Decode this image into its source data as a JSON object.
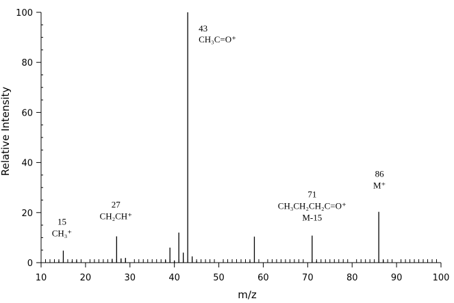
{
  "chart_data": {
    "type": "bar",
    "xlabel": "m/z",
    "ylabel": "Relative Intensity",
    "xlim": [
      10,
      100
    ],
    "ylim": [
      0,
      100
    ],
    "x_ticks": [
      10,
      20,
      30,
      40,
      50,
      60,
      70,
      80,
      90,
      100
    ],
    "y_ticks": [
      0,
      20,
      40,
      60,
      80,
      100
    ],
    "grid": false,
    "peaks": [
      {
        "mz": 14,
        "intensity": 0.8
      },
      {
        "mz": 15,
        "intensity": 4.8
      },
      {
        "mz": 17,
        "intensity": 0.6
      },
      {
        "mz": 18,
        "intensity": 0.9
      },
      {
        "mz": 26,
        "intensity": 1.5
      },
      {
        "mz": 27,
        "intensity": 10.5
      },
      {
        "mz": 28,
        "intensity": 1.7
      },
      {
        "mz": 29,
        "intensity": 1.9
      },
      {
        "mz": 38,
        "intensity": 1.0
      },
      {
        "mz": 39,
        "intensity": 6.0
      },
      {
        "mz": 40,
        "intensity": 0.9
      },
      {
        "mz": 41,
        "intensity": 12.0
      },
      {
        "mz": 42,
        "intensity": 4.0
      },
      {
        "mz": 43,
        "intensity": 100
      },
      {
        "mz": 44,
        "intensity": 2.5
      },
      {
        "mz": 45,
        "intensity": 0.6
      },
      {
        "mz": 57,
        "intensity": 0.8
      },
      {
        "mz": 58,
        "intensity": 10.4
      },
      {
        "mz": 71,
        "intensity": 10.8
      },
      {
        "mz": 72,
        "intensity": 0.6
      },
      {
        "mz": 86,
        "intensity": 20.3
      },
      {
        "mz": 87,
        "intensity": 1.1
      }
    ],
    "annotations": [
      {
        "mz": 43,
        "lines": [
          "43",
          "CH₃C=O⁺"
        ]
      },
      {
        "mz": 15,
        "lines": [
          "15",
          "CH₃⁺"
        ]
      },
      {
        "mz": 27,
        "lines": [
          "27",
          "CH₂CH⁺"
        ]
      },
      {
        "mz": 71,
        "lines": [
          "71",
          "CH₃CH₂CH₂C=O⁺",
          "M-15"
        ]
      },
      {
        "mz": 86,
        "lines": [
          "86",
          "M⁺"
        ]
      }
    ]
  }
}
